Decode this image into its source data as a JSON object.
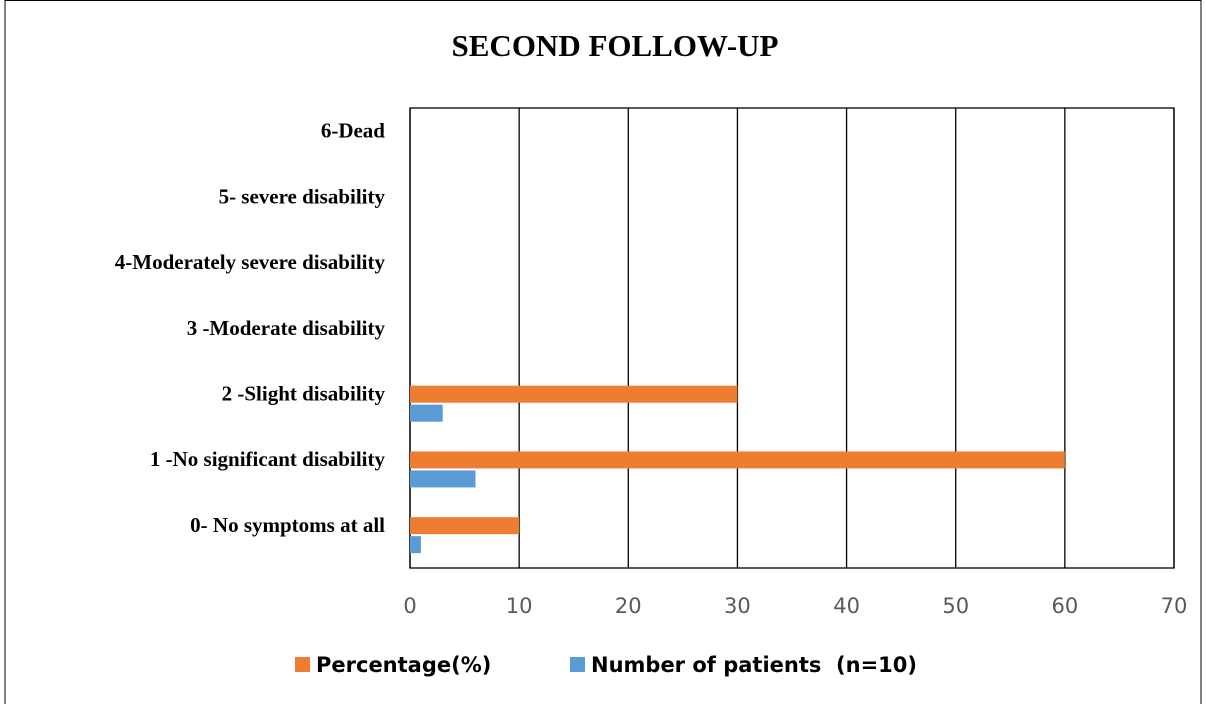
{
  "chart_data": {
    "type": "bar",
    "orientation": "horizontal",
    "title": "SECOND FOLLOW-UP",
    "categories": [
      "0- No symptoms at all",
      "1 -No significant disability",
      "2 -Slight disability",
      "3 -Moderate disability",
      "4-Moderately severe disability",
      "5- severe disability",
      "6-Dead"
    ],
    "series": [
      {
        "name": "Percentage(%)",
        "color": "#ed7d31",
        "values": [
          10,
          60,
          30,
          0,
          0,
          0,
          0
        ]
      },
      {
        "name": "Number of patients  (n=10)",
        "color": "#5b9bd5",
        "values": [
          1,
          6,
          3,
          0,
          0,
          0,
          0
        ]
      }
    ],
    "xlim": [
      0,
      70
    ],
    "xticks": [
      0,
      10,
      20,
      30,
      40,
      50,
      60,
      70
    ],
    "grid": true,
    "legend": "bottom"
  }
}
